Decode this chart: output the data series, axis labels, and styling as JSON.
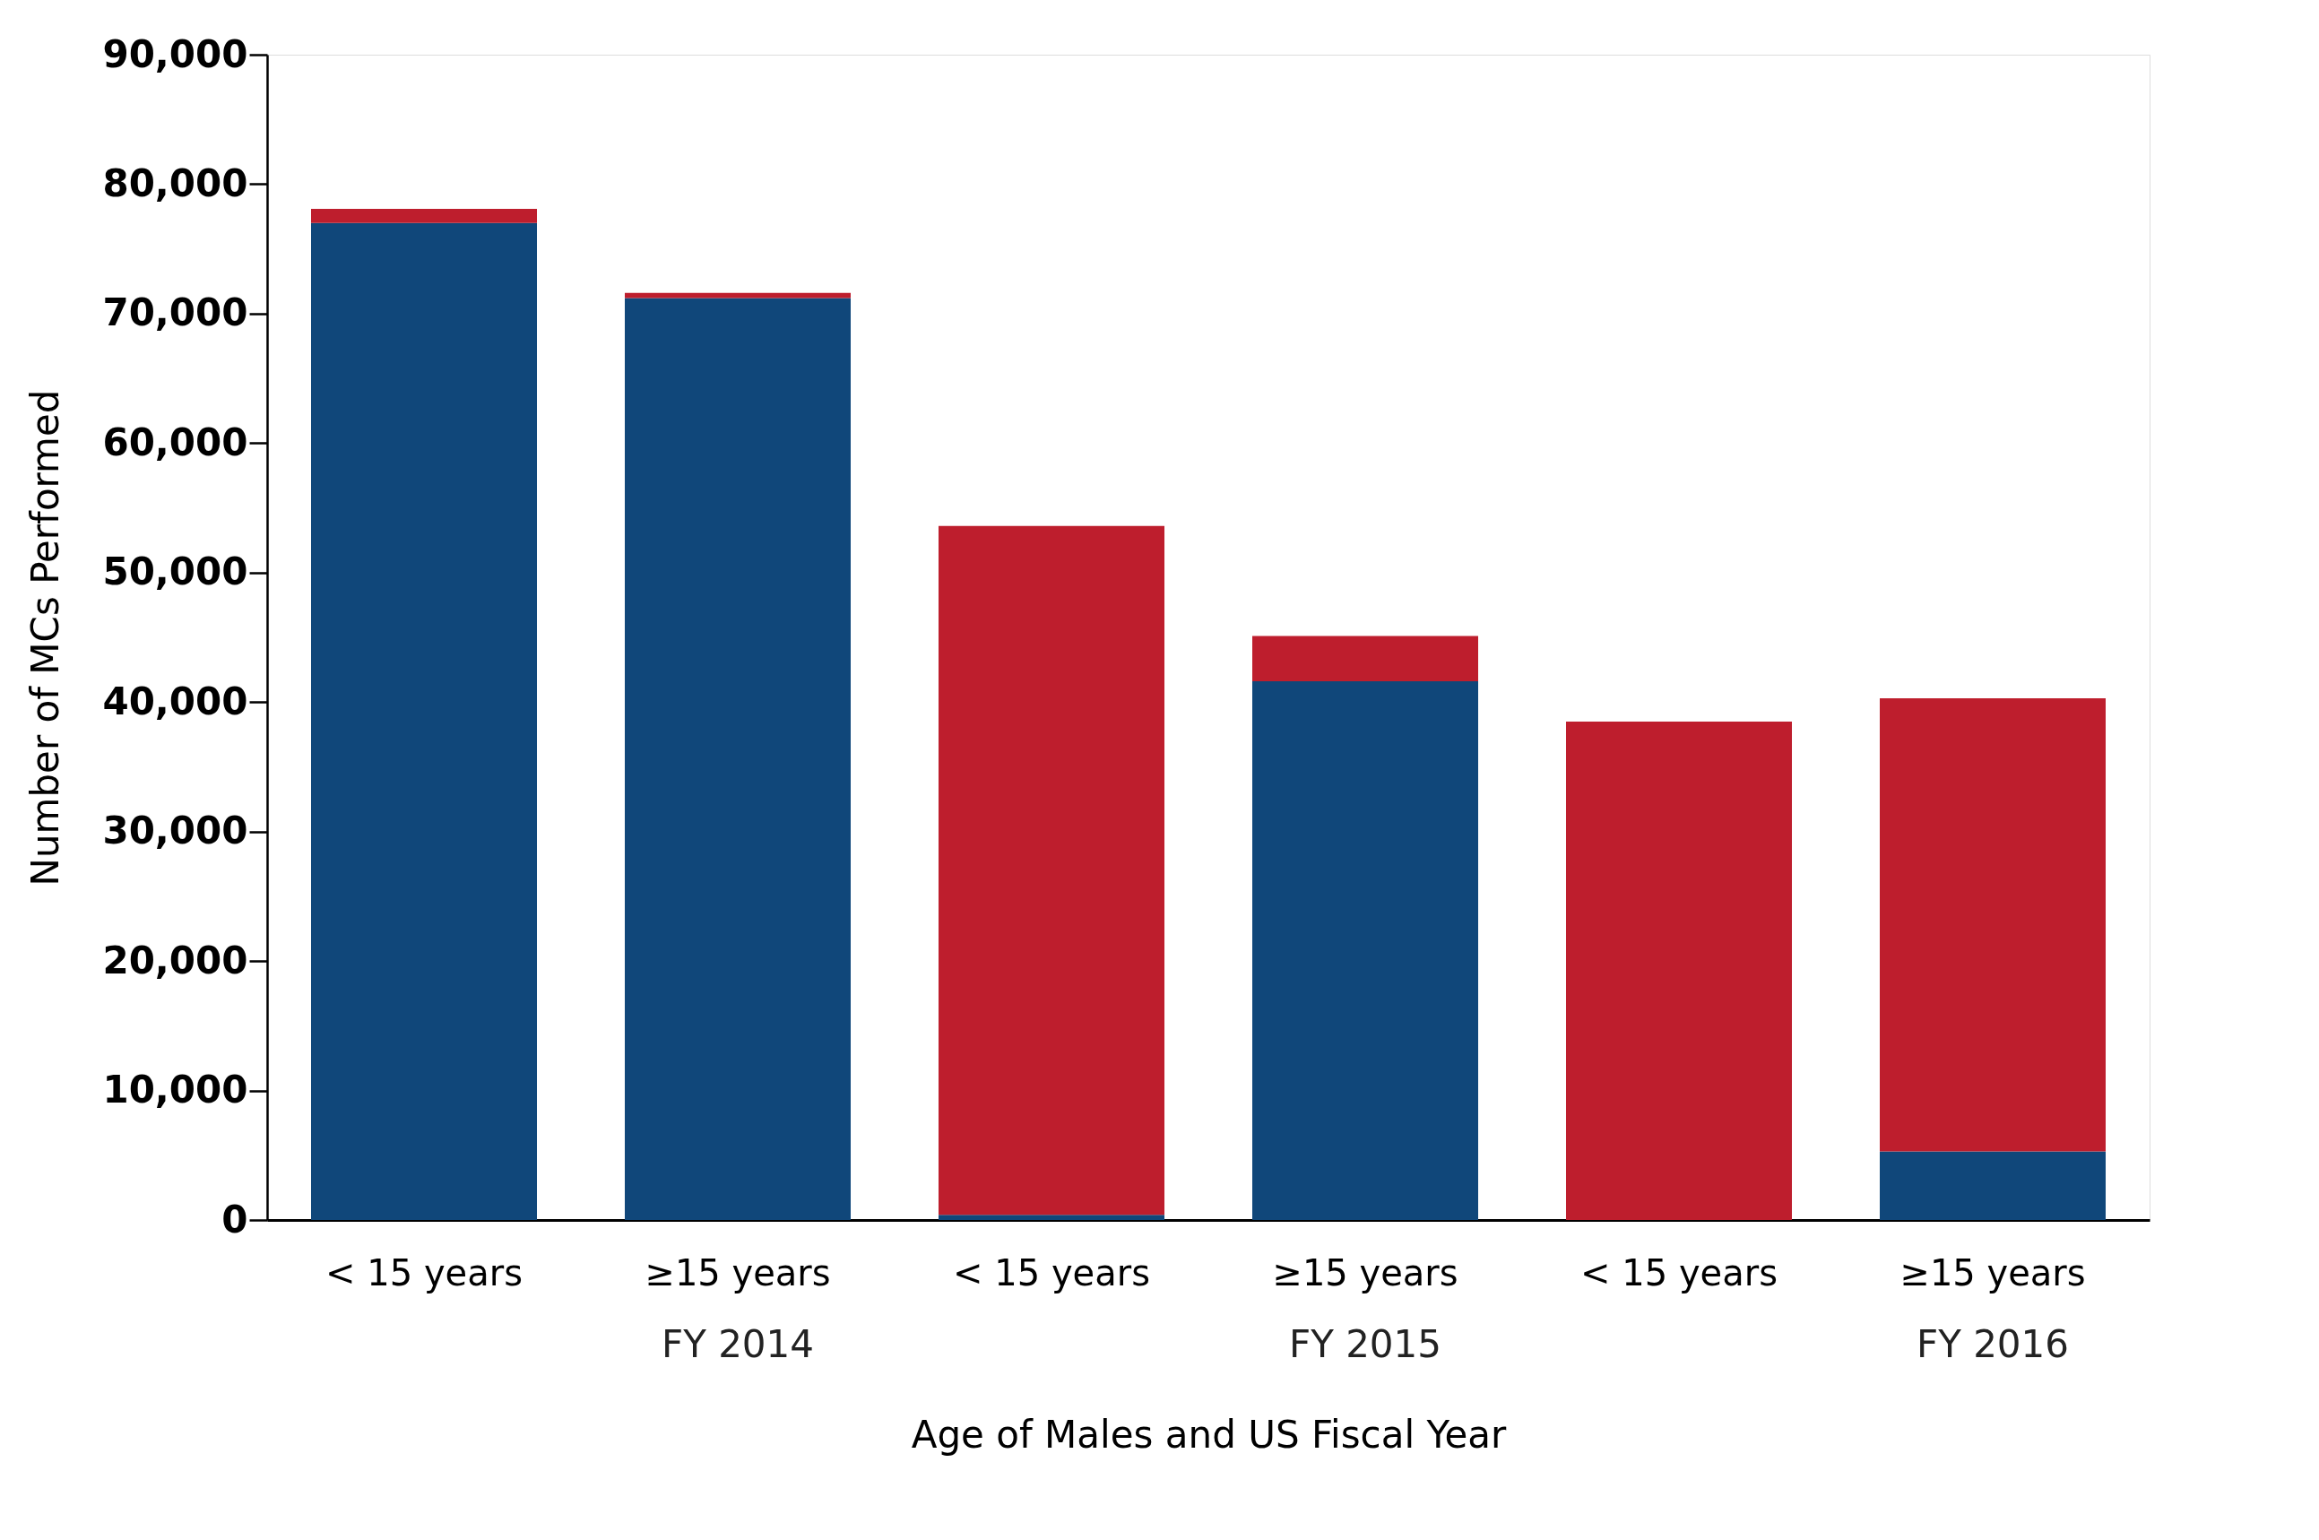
{
  "chart_data": {
    "type": "bar",
    "stacked": true,
    "xlabel": "Age of Males and US Fiscal Year",
    "ylabel": "Number of MCs Performed",
    "categories": [
      "< 15 years",
      "≥15 years",
      "< 15 years",
      "≥15 years",
      "< 15 years",
      "≥15 years"
    ],
    "series": [
      {
        "color": "#10477a",
        "values": [
          77000,
          71200,
          400,
          41600,
          0,
          5300
        ]
      },
      {
        "color": "#be1e2d",
        "values": [
          1100,
          400,
          53200,
          3500,
          38500,
          35000
        ]
      }
    ],
    "annotations": [
      "FY 2014",
      "FY 2015",
      "FY 2016"
    ],
    "ylim": [
      0,
      90000
    ],
    "yticks": [
      0,
      {
        "value": 10000,
        "label": "10,000"
      },
      {
        "value": 20000,
        "label": "20,000"
      },
      {
        "value": 30000,
        "label": "30,000"
      },
      {
        "value": 40000,
        "label": "40,000"
      },
      {
        "value": 50000,
        "label": "50,000"
      },
      {
        "value": 60000,
        "label": "60,000"
      },
      {
        "value": 70000,
        "label": "70,000"
      },
      {
        "value": 80000,
        "label": "80,000"
      },
      {
        "value": 90000,
        "label": "90,000"
      }
    ],
    "grid": false,
    "legend": false
  }
}
